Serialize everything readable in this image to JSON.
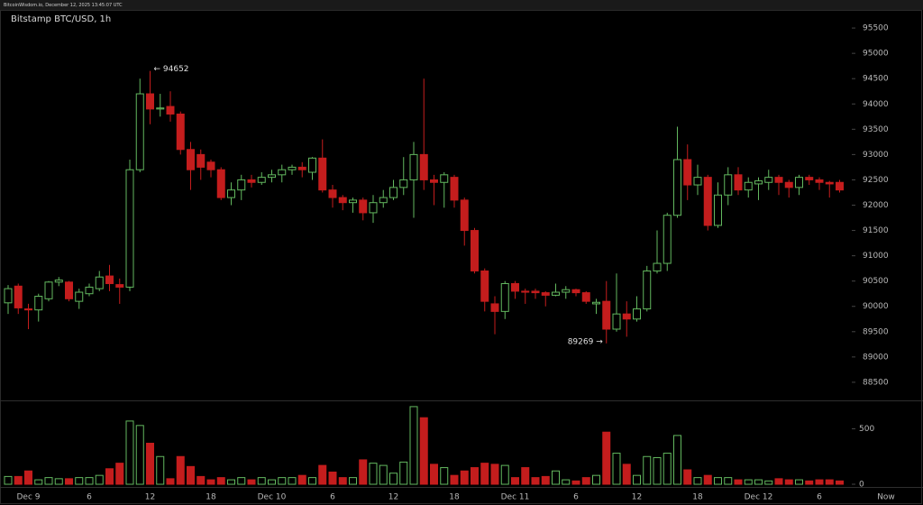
{
  "chart_data": {
    "type": "candlestick",
    "header": "BitcoinWisdom.io, December 12, 2025 13:45:07 UTC",
    "title": "Bitstamp BTC/USD, 1h",
    "categories": [
      null,
      null,
      "Dec 9",
      null,
      null,
      null,
      null,
      null,
      "6",
      null,
      null,
      null,
      null,
      null,
      "12",
      null,
      null,
      null,
      null,
      null,
      "18",
      null,
      null,
      null,
      null,
      null,
      "Dec 10",
      null,
      null,
      null,
      null,
      null,
      "6",
      null,
      null,
      null,
      null,
      null,
      "12",
      null,
      null,
      null,
      null,
      null,
      "18",
      null,
      null,
      null,
      null,
      null,
      "Dec 11",
      null,
      null,
      null,
      null,
      null,
      "6",
      null,
      null,
      null,
      null,
      null,
      "12",
      null,
      null,
      null,
      null,
      null,
      "18",
      null,
      null,
      null,
      null,
      null,
      "Dec 12",
      null,
      null,
      null,
      null,
      null,
      "6",
      null,
      null
    ],
    "x_end_label": "Now",
    "open": [
      90070,
      90400,
      89950,
      89930,
      90150,
      90480,
      90480,
      90100,
      90250,
      90350,
      90600,
      90430,
      90380,
      92700,
      94200,
      93900,
      93950,
      93800,
      93100,
      93000,
      92850,
      92700,
      92150,
      92300,
      92500,
      92450,
      92550,
      92600,
      92700,
      92750,
      92650,
      92930,
      92300,
      92150,
      92050,
      92100,
      91850,
      92050,
      92150,
      92350,
      92500,
      93000,
      92500,
      92450,
      92550,
      92100,
      91500,
      90700,
      90050,
      89900,
      90450,
      90300,
      90300,
      90270,
      90220,
      90280,
      90330,
      90270,
      90050,
      90100,
      89550,
      89850,
      89750,
      89950,
      90700,
      90850,
      91800,
      92900,
      92400,
      92550,
      91600,
      92200,
      92600,
      92300,
      92420,
      92450,
      92550,
      92450,
      92350,
      92550,
      92500,
      92450,
      92450
    ],
    "high": [
      90420,
      90450,
      90050,
      90250,
      90500,
      90580,
      90500,
      90350,
      90450,
      90700,
      90820,
      90550,
      92900,
      94500,
      94652,
      94200,
      94250,
      93850,
      93250,
      93100,
      92900,
      92750,
      92450,
      92600,
      92600,
      92650,
      92700,
      92800,
      92800,
      92850,
      92950,
      93300,
      92400,
      92200,
      92150,
      92150,
      92200,
      92300,
      92500,
      92950,
      93250,
      94500,
      92600,
      92650,
      92600,
      92150,
      91550,
      90750,
      90200,
      90500,
      90500,
      90350,
      90350,
      90300,
      90450,
      90400,
      90350,
      90300,
      90150,
      90500,
      90650,
      90100,
      90200,
      90800,
      91500,
      91850,
      93550,
      93200,
      92800,
      92600,
      92450,
      92750,
      92750,
      92550,
      92550,
      92700,
      92600,
      92500,
      92600,
      92600,
      92550,
      92480,
      92500
    ],
    "low": [
      89850,
      89850,
      89550,
      89700,
      90100,
      90400,
      90100,
      89950,
      90200,
      90300,
      90300,
      90050,
      90300,
      92650,
      93600,
      93750,
      93650,
      93000,
      92300,
      92500,
      92550,
      92100,
      92000,
      92100,
      92350,
      92400,
      92450,
      92450,
      92600,
      92550,
      92500,
      92250,
      91950,
      91900,
      91850,
      91700,
      91650,
      91950,
      92100,
      92200,
      91750,
      92300,
      92000,
      91950,
      91950,
      91200,
      90650,
      89900,
      89450,
      89750,
      90150,
      90050,
      90150,
      90000,
      90200,
      90150,
      90200,
      90050,
      89850,
      89269,
      89500,
      89400,
      89700,
      89900,
      90650,
      90700,
      91750,
      92100,
      92200,
      91500,
      91550,
      92000,
      92200,
      92150,
      92100,
      92300,
      92200,
      92150,
      92200,
      92400,
      92300,
      92150,
      92250
    ],
    "close": [
      90350,
      89970,
      89930,
      90200,
      90480,
      90520,
      90150,
      90280,
      90380,
      90580,
      90450,
      90380,
      92700,
      94200,
      93900,
      93920,
      93800,
      93100,
      92700,
      92750,
      92700,
      92150,
      92300,
      92500,
      92450,
      92550,
      92600,
      92700,
      92750,
      92700,
      92930,
      92300,
      92150,
      92050,
      92100,
      91850,
      92050,
      92150,
      92350,
      92500,
      93000,
      92500,
      92450,
      92600,
      92100,
      91500,
      90700,
      90100,
      89900,
      90450,
      90300,
      90280,
      90270,
      90220,
      90280,
      90330,
      90270,
      90100,
      90080,
      89550,
      89850,
      89750,
      89950,
      90700,
      90850,
      91800,
      92900,
      92400,
      92550,
      91600,
      92200,
      92600,
      92300,
      92450,
      92480,
      92550,
      92450,
      92350,
      92550,
      92500,
      92450,
      92420,
      92300
    ],
    "volume": [
      70,
      70,
      120,
      40,
      60,
      50,
      50,
      60,
      60,
      80,
      140,
      190,
      570,
      530,
      370,
      250,
      50,
      250,
      160,
      70,
      40,
      60,
      40,
      60,
      40,
      60,
      40,
      60,
      60,
      80,
      60,
      170,
      110,
      60,
      60,
      220,
      190,
      170,
      100,
      200,
      700,
      600,
      180,
      150,
      80,
      120,
      150,
      190,
      180,
      170,
      60,
      150,
      60,
      70,
      120,
      40,
      30,
      60,
      80,
      470,
      280,
      180,
      80,
      250,
      240,
      280,
      440,
      130,
      60,
      80,
      60,
      60,
      40,
      40,
      40,
      30,
      50,
      40,
      40,
      30,
      40,
      40,
      30
    ],
    "high_label": "← 94652",
    "low_label": "89269 →",
    "up_color": "#63b85f",
    "down_color": "#c41d1d",
    "ylim": [
      88160,
      95840
    ],
    "yticks": [
      88500,
      89000,
      89500,
      90000,
      90500,
      91000,
      91500,
      92000,
      92500,
      93000,
      93500,
      94000,
      94500,
      95000,
      95500
    ],
    "vlim": [
      0,
      740
    ],
    "vticks": [
      0,
      500
    ]
  }
}
